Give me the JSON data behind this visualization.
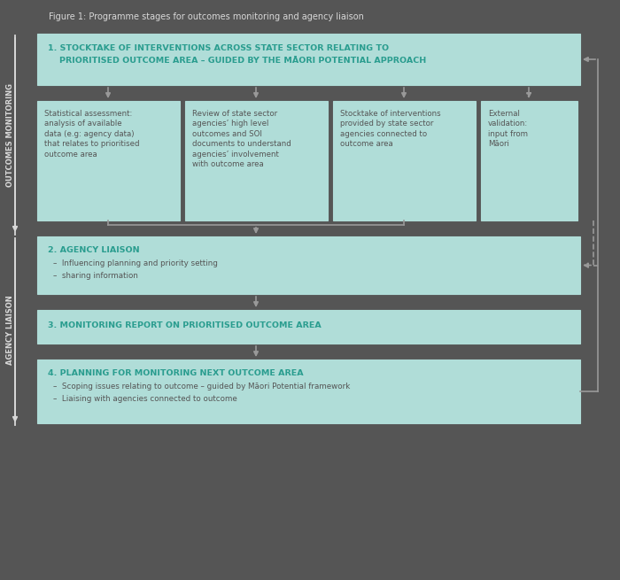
{
  "title": "Figure 1: Programme stages for outcomes monitoring and agency liaison",
  "bg_color": "#555555",
  "box_color": "#b0ddd8",
  "text_color_dark": "#555555",
  "text_color_teal": "#2a9d8f",
  "text_color_white": "#d8d8d8",
  "arrow_color": "#999999",
  "stage1_line1": "1. STOCKTAKE OF INTERVENTIONS ACROSS STATE SECTOR RELATING TO",
  "stage1_line2": "    PRIORITISED OUTCOME AREA – GUIDED BY THE MĀORI POTENTIAL APPROACH",
  "stage2_title": "2. AGENCY LIAISON",
  "stage2_bullets": [
    "–  Influencing planning and priority setting",
    "–  sharing information"
  ],
  "stage3_title": "3. MONITORING REPORT ON PRIORITISED OUTCOME AREA",
  "stage4_title": "4. PLANNING FOR MONITORING NEXT OUTCOME AREA",
  "stage4_bullets": [
    "–  Scoping issues relating to outcome – guided by Māori Potential framework",
    "–  Liaising with agencies connected to outcome"
  ],
  "sub1_text": "Statistical assessment:\nanalysis of available\ndata (e.g: agency data)\nthat relates to prioritised\noutcome area",
  "sub2_text": "Review of state sector\nagencies’ high level\noutcomes and SOI\ndocuments to understand\nagencies’ involvement\nwith outcome area",
  "sub3_text": "Stocktake of interventions\nprovided by state sector\nagencies connected to\noutcome area",
  "sub4_text": "External\nvalidation:\ninput from\nMāori",
  "outcomes_monitoring_label": "OUTCOMES MONITORING",
  "agency_liaison_label": "AGENCY LIAISON"
}
